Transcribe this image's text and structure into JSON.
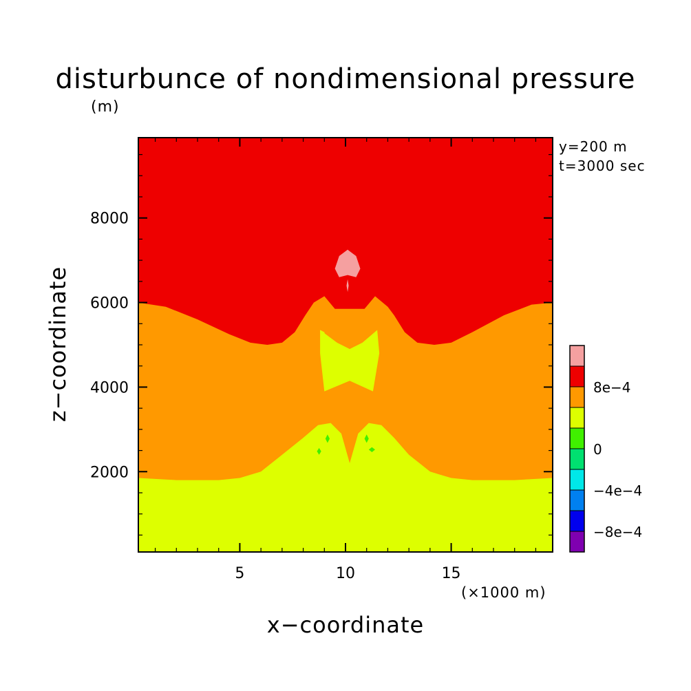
{
  "chart_data": {
    "type": "heatmap",
    "title": "disturbunce of nondimensional pressure",
    "xlabel": "x−coordinate",
    "ylabel": "z−coordinate",
    "x_unit": "(×1000 m)",
    "y_unit": "(m)",
    "annotations": [
      "y=200 m",
      "t=3000 sec"
    ],
    "xlim": [
      0.2,
      19.8
    ],
    "ylim": [
      100,
      9900
    ],
    "x_ticks": [
      {
        "value": 5,
        "label": "5"
      },
      {
        "value": 10,
        "label": "10"
      },
      {
        "value": 15,
        "label": "15"
      }
    ],
    "y_ticks": [
      {
        "value": 2000,
        "label": "2000"
      },
      {
        "value": 4000,
        "label": "4000"
      },
      {
        "value": 6000,
        "label": "6000"
      },
      {
        "value": 8000,
        "label": "8000"
      }
    ],
    "x_minor_step": 1,
    "y_minor_step": 500,
    "levels": [
      {
        "min": null,
        "max": -0.0008,
        "color": "#7f00b0"
      },
      {
        "min": -0.0008,
        "max": -0.0006,
        "color": "#0000ee"
      },
      {
        "min": -0.0006,
        "max": -0.0004,
        "color": "#0080f0"
      },
      {
        "min": -0.0004,
        "max": -0.0002,
        "color": "#00e8e8"
      },
      {
        "min": -0.0002,
        "max": 0,
        "color": "#00e070"
      },
      {
        "min": 0,
        "max": 0.0002,
        "color": "#40f000"
      },
      {
        "min": 0.0002,
        "max": 0.0006,
        "color": "#ddff00"
      },
      {
        "min": 0.0006,
        "max": 0.0008,
        "color": "#ff9900"
      },
      {
        "min": 0.0008,
        "max": 0.001,
        "color": "#ee0000"
      },
      {
        "min": 0.001,
        "max": null,
        "color": "#f5a0a0"
      }
    ],
    "colorbar_labels": [
      {
        "value": 0.0008,
        "label": "8e−4"
      },
      {
        "value": 0.0004,
        "label": "4e−4"
      },
      {
        "value": 0,
        "label": "0"
      },
      {
        "value": -0.0004,
        "label": "−4e−4"
      },
      {
        "value": -0.0008,
        "label": "−8e−4"
      }
    ],
    "regions": [
      {
        "name": "low-level-band",
        "color": "#40f000",
        "points": [
          [
            0.2,
            100
          ],
          [
            0.2,
            450
          ],
          [
            1.5,
            500
          ],
          [
            3,
            650
          ],
          [
            4.8,
            750
          ],
          [
            6.2,
            650
          ],
          [
            7.2,
            450
          ],
          [
            8.2,
            100
          ],
          [
            11.8,
            100
          ],
          [
            12.8,
            450
          ],
          [
            13.8,
            650
          ],
          [
            15.2,
            750
          ],
          [
            17,
            650
          ],
          [
            18.5,
            500
          ],
          [
            19.8,
            450
          ],
          [
            19.8,
            100
          ]
        ]
      },
      {
        "name": "lower-yellow-band",
        "color": "#ddff00",
        "points": [
          [
            0.2,
            100
          ],
          [
            0.2,
            1850
          ],
          [
            2,
            1800
          ],
          [
            4,
            1800
          ],
          [
            5,
            1850
          ],
          [
            6,
            2000
          ],
          [
            7,
            2400
          ],
          [
            8,
            2800
          ],
          [
            8.7,
            3100
          ],
          [
            9.3,
            3150
          ],
          [
            9.8,
            2900
          ],
          [
            10.2,
            2200
          ],
          [
            10.6,
            2900
          ],
          [
            11.1,
            3150
          ],
          [
            11.7,
            3100
          ],
          [
            12.3,
            2800
          ],
          [
            13,
            2400
          ],
          [
            14,
            2000
          ],
          [
            15,
            1850
          ],
          [
            16,
            1800
          ],
          [
            18,
            1800
          ],
          [
            19.8,
            1850
          ],
          [
            19.8,
            100
          ]
        ]
      },
      {
        "name": "orange-band",
        "color": "#ff9900",
        "points": [
          [
            0.2,
            100
          ],
          [
            0.2,
            6000
          ],
          [
            1.5,
            5900
          ],
          [
            3,
            5600
          ],
          [
            4.5,
            5250
          ],
          [
            5.5,
            5050
          ],
          [
            6.3,
            5000
          ],
          [
            7,
            5050
          ],
          [
            7.6,
            5300
          ],
          [
            8.1,
            5700
          ],
          [
            8.5,
            6000
          ],
          [
            9,
            6150
          ],
          [
            9.5,
            5850
          ],
          [
            10.9,
            5850
          ],
          [
            11.4,
            6150
          ],
          [
            12,
            5900
          ],
          [
            12.3,
            5700
          ],
          [
            12.8,
            5300
          ],
          [
            13.4,
            5050
          ],
          [
            14.2,
            5000
          ],
          [
            15,
            5050
          ],
          [
            16,
            5300
          ],
          [
            17.5,
            5700
          ],
          [
            18.8,
            5950
          ],
          [
            19.8,
            6000
          ],
          [
            19.8,
            100
          ]
        ]
      },
      {
        "name": "upper-red-band",
        "color": "#ee0000",
        "points": [
          [
            0.2,
            100
          ],
          [
            0.2,
            9900
          ],
          [
            19.8,
            9900
          ],
          [
            19.8,
            100
          ]
        ]
      },
      {
        "name": "mid-yellow-lobe",
        "color": "#ddff00",
        "points": [
          [
            8.8,
            5350
          ],
          [
            9.6,
            5050
          ],
          [
            10.2,
            4900
          ],
          [
            10.8,
            5050
          ],
          [
            11.5,
            5350
          ],
          [
            11.6,
            4800
          ],
          [
            11.3,
            3900
          ],
          [
            10.2,
            4150
          ],
          [
            9.0,
            3900
          ],
          [
            8.8,
            4800
          ]
        ]
      },
      {
        "name": "mid-yellow-inner-left",
        "color": "#ddff00",
        "points": [
          [
            8.8,
            5350
          ],
          [
            9.0,
            5300
          ],
          [
            9.1,
            5050
          ],
          [
            8.9,
            4800
          ]
        ]
      },
      {
        "name": "green-spot-a",
        "color": "#40f000",
        "points": [
          [
            9.15,
            2880
          ],
          [
            9.25,
            2780
          ],
          [
            9.15,
            2680
          ],
          [
            9.05,
            2780
          ]
        ]
      },
      {
        "name": "green-spot-b",
        "color": "#40f000",
        "points": [
          [
            11.0,
            2880
          ],
          [
            11.1,
            2780
          ],
          [
            11.0,
            2680
          ],
          [
            10.9,
            2780
          ]
        ]
      },
      {
        "name": "green-spot-c",
        "color": "#40f000",
        "points": [
          [
            8.75,
            2560
          ],
          [
            8.85,
            2480
          ],
          [
            8.75,
            2400
          ],
          [
            8.65,
            2480
          ]
        ]
      },
      {
        "name": "green-spot-d",
        "color": "#40f000",
        "points": [
          [
            11.25,
            2580
          ],
          [
            11.4,
            2520
          ],
          [
            11.25,
            2460
          ],
          [
            11.1,
            2520
          ]
        ]
      },
      {
        "name": "pink-cap",
        "color": "#f5a0a0",
        "points": [
          [
            10.1,
            7250
          ],
          [
            10.5,
            7100
          ],
          [
            10.7,
            6800
          ],
          [
            10.5,
            6600
          ],
          [
            10.1,
            6650
          ],
          [
            9.7,
            6600
          ],
          [
            9.5,
            6800
          ],
          [
            9.7,
            7100
          ]
        ]
      },
      {
        "name": "pink-sliver",
        "color": "#f5a0a0",
        "points": [
          [
            10.1,
            6550
          ],
          [
            10.15,
            6400
          ],
          [
            10.1,
            6250
          ],
          [
            10.05,
            6400
          ]
        ]
      }
    ]
  }
}
